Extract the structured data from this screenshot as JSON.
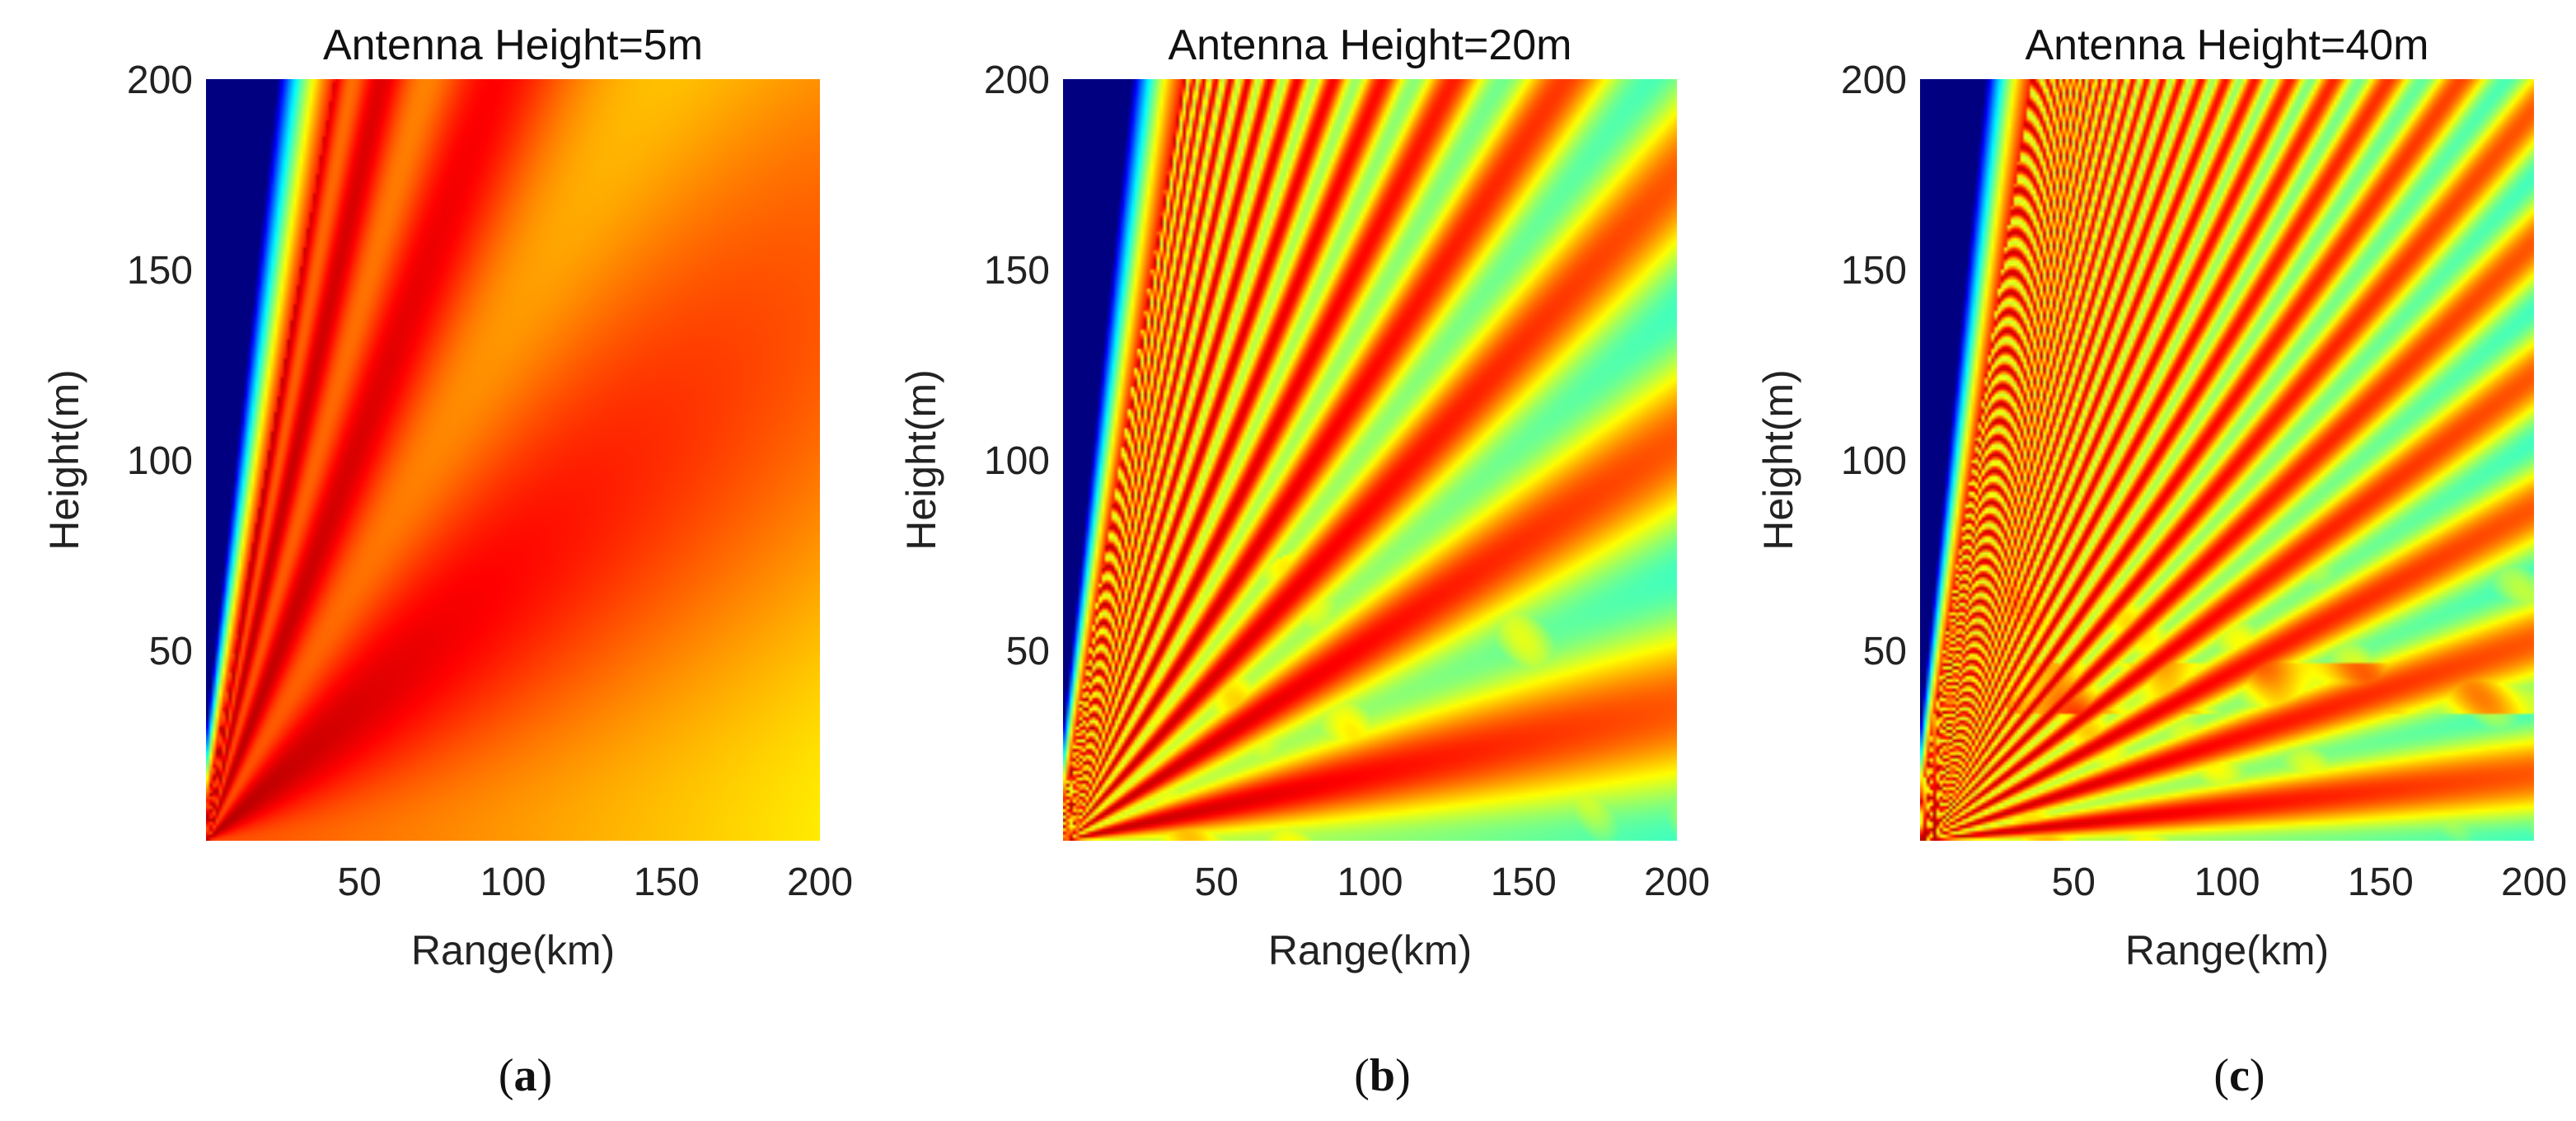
{
  "chart_data": [
    {
      "type": "heatmap",
      "panel_label": "a",
      "title": "Antenna Height=5m",
      "xlabel": "Range(km)",
      "ylabel": "Height(m)",
      "xlim": [
        0,
        200
      ],
      "ylim": [
        0,
        200
      ],
      "xticks": [
        50,
        100,
        150,
        200
      ],
      "yticks": [
        50,
        100,
        150,
        200
      ],
      "antenna_height_m": 5,
      "colormap": "jet"
    },
    {
      "type": "heatmap",
      "panel_label": "b",
      "title": "Antenna Height=20m",
      "xlabel": "Range(km)",
      "ylabel": "Height(m)",
      "xlim": [
        0,
        200
      ],
      "ylim": [
        0,
        200
      ],
      "xticks": [
        50,
        100,
        150,
        200
      ],
      "yticks": [
        50,
        100,
        150,
        200
      ],
      "antenna_height_m": 20,
      "colormap": "jet"
    },
    {
      "type": "heatmap",
      "panel_label": "c",
      "title": "Antenna Height=40m",
      "xlabel": "Range(km)",
      "ylabel": "Height(m)",
      "xlim": [
        0,
        200
      ],
      "ylim": [
        0,
        200
      ],
      "xticks": [
        50,
        100,
        150,
        200
      ],
      "yticks": [
        50,
        100,
        150,
        200
      ],
      "antenna_height_m": 40,
      "colormap": "jet"
    }
  ]
}
